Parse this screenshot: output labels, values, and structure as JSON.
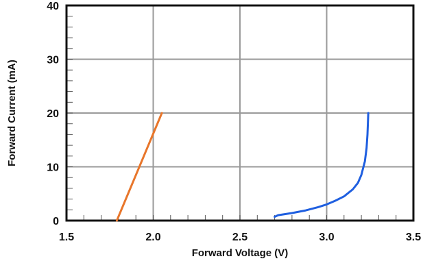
{
  "chart_data": {
    "type": "line",
    "title": "",
    "xlabel": "Forward Voltage (V)",
    "ylabel": "Forward Current (mA)",
    "xlim": [
      1.5,
      3.5
    ],
    "ylim": [
      0,
      40
    ],
    "x_ticks": [
      "1.5",
      "2.0",
      "2.5",
      "3.0",
      "3.5"
    ],
    "y_ticks": [
      "0",
      "10",
      "20",
      "30",
      "40"
    ],
    "grid": true,
    "legend": "none",
    "series": [
      {
        "color": "#e8762b",
        "x": [
          1.79,
          2.05
        ],
        "y": [
          0,
          20
        ]
      },
      {
        "color": "#1f5fe0",
        "x": [
          2.7,
          2.72,
          2.8,
          2.88,
          2.95,
          3.0,
          3.05,
          3.1,
          3.15,
          3.18,
          3.2,
          3.22,
          3.23,
          3.235,
          3.24
        ],
        "y": [
          0.7,
          1.0,
          1.4,
          1.9,
          2.5,
          3.0,
          3.7,
          4.5,
          5.8,
          7.0,
          8.5,
          11,
          13.5,
          16,
          20
        ]
      }
    ]
  }
}
